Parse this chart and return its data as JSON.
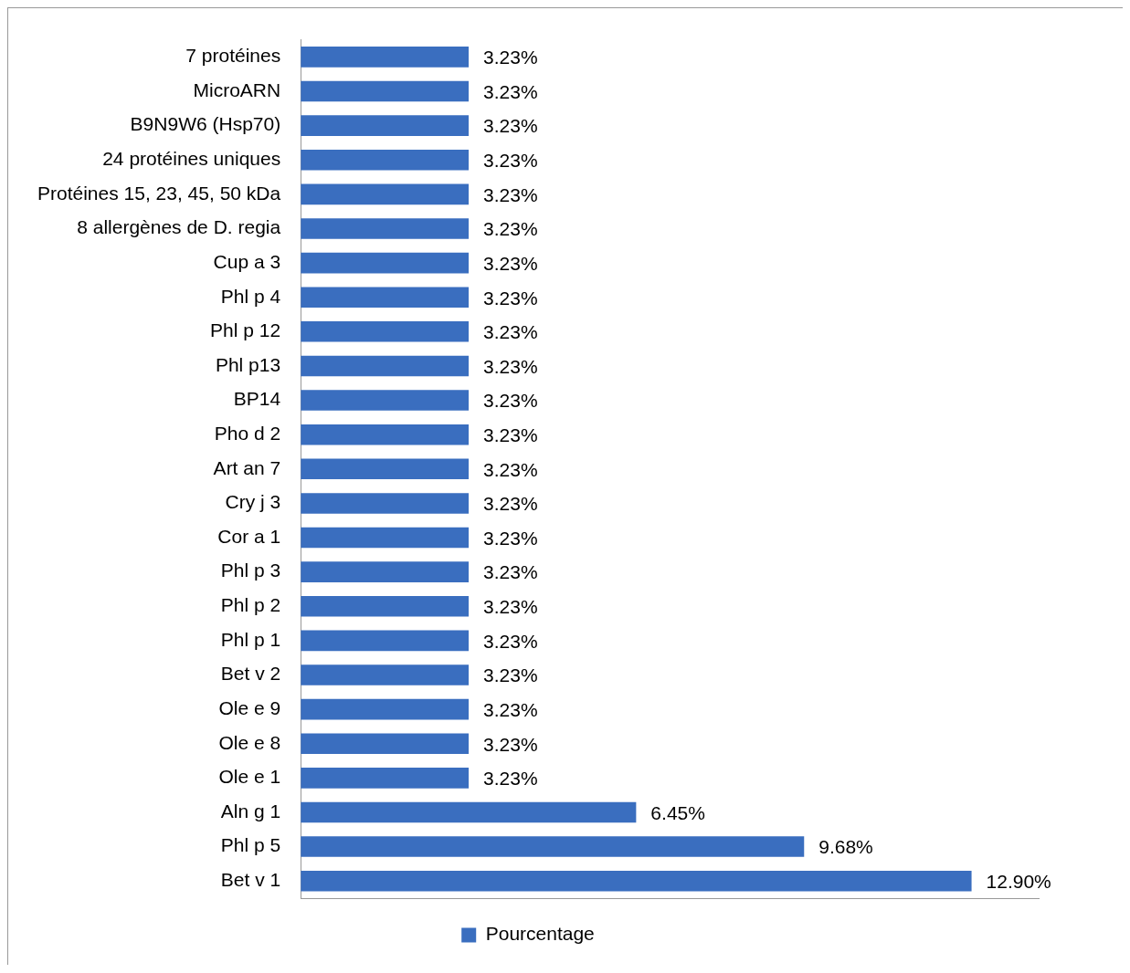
{
  "chart_data": {
    "type": "bar",
    "orientation": "horizontal",
    "categories": [
      "7 protéines",
      "MicroARN",
      "B9N9W6 (Hsp70)",
      "24 protéines uniques",
      "Protéines 15, 23, 45, 50 kDa",
      "8 allergènes de D. regia",
      "Cup a 3",
      "Phl p 4",
      "Phl p 12",
      "Phl p13",
      "BP14",
      "Pho d 2",
      "Art an 7",
      "Cry j 3",
      "Cor a 1",
      "Phl p 3",
      "Phl p 2",
      "Phl p 1",
      "Bet v 2",
      "Ole e 9",
      "Ole e 8",
      "Ole e 1",
      "Aln g 1",
      "Phl p 5",
      "Bet v 1"
    ],
    "series": [
      {
        "name": "Pourcentage",
        "color": "#3a6ebf",
        "values": [
          3.23,
          3.23,
          3.23,
          3.23,
          3.23,
          3.23,
          3.23,
          3.23,
          3.23,
          3.23,
          3.23,
          3.23,
          3.23,
          3.23,
          3.23,
          3.23,
          3.23,
          3.23,
          3.23,
          3.23,
          3.23,
          3.23,
          6.45,
          9.68,
          12.9
        ],
        "value_labels": [
          "3.23%",
          "3.23%",
          "3.23%",
          "3.23%",
          "3.23%",
          "3.23%",
          "3.23%",
          "3.23%",
          "3.23%",
          "3.23%",
          "3.23%",
          "3.23%",
          "3.23%",
          "3.23%",
          "3.23%",
          "3.23%",
          "3.23%",
          "3.23%",
          "3.23%",
          "3.23%",
          "3.23%",
          "3.23%",
          "6.45%",
          "9.68%",
          "12.90%"
        ]
      }
    ],
    "legend": "bottom",
    "tick_labels": "y",
    "grid": false
  }
}
